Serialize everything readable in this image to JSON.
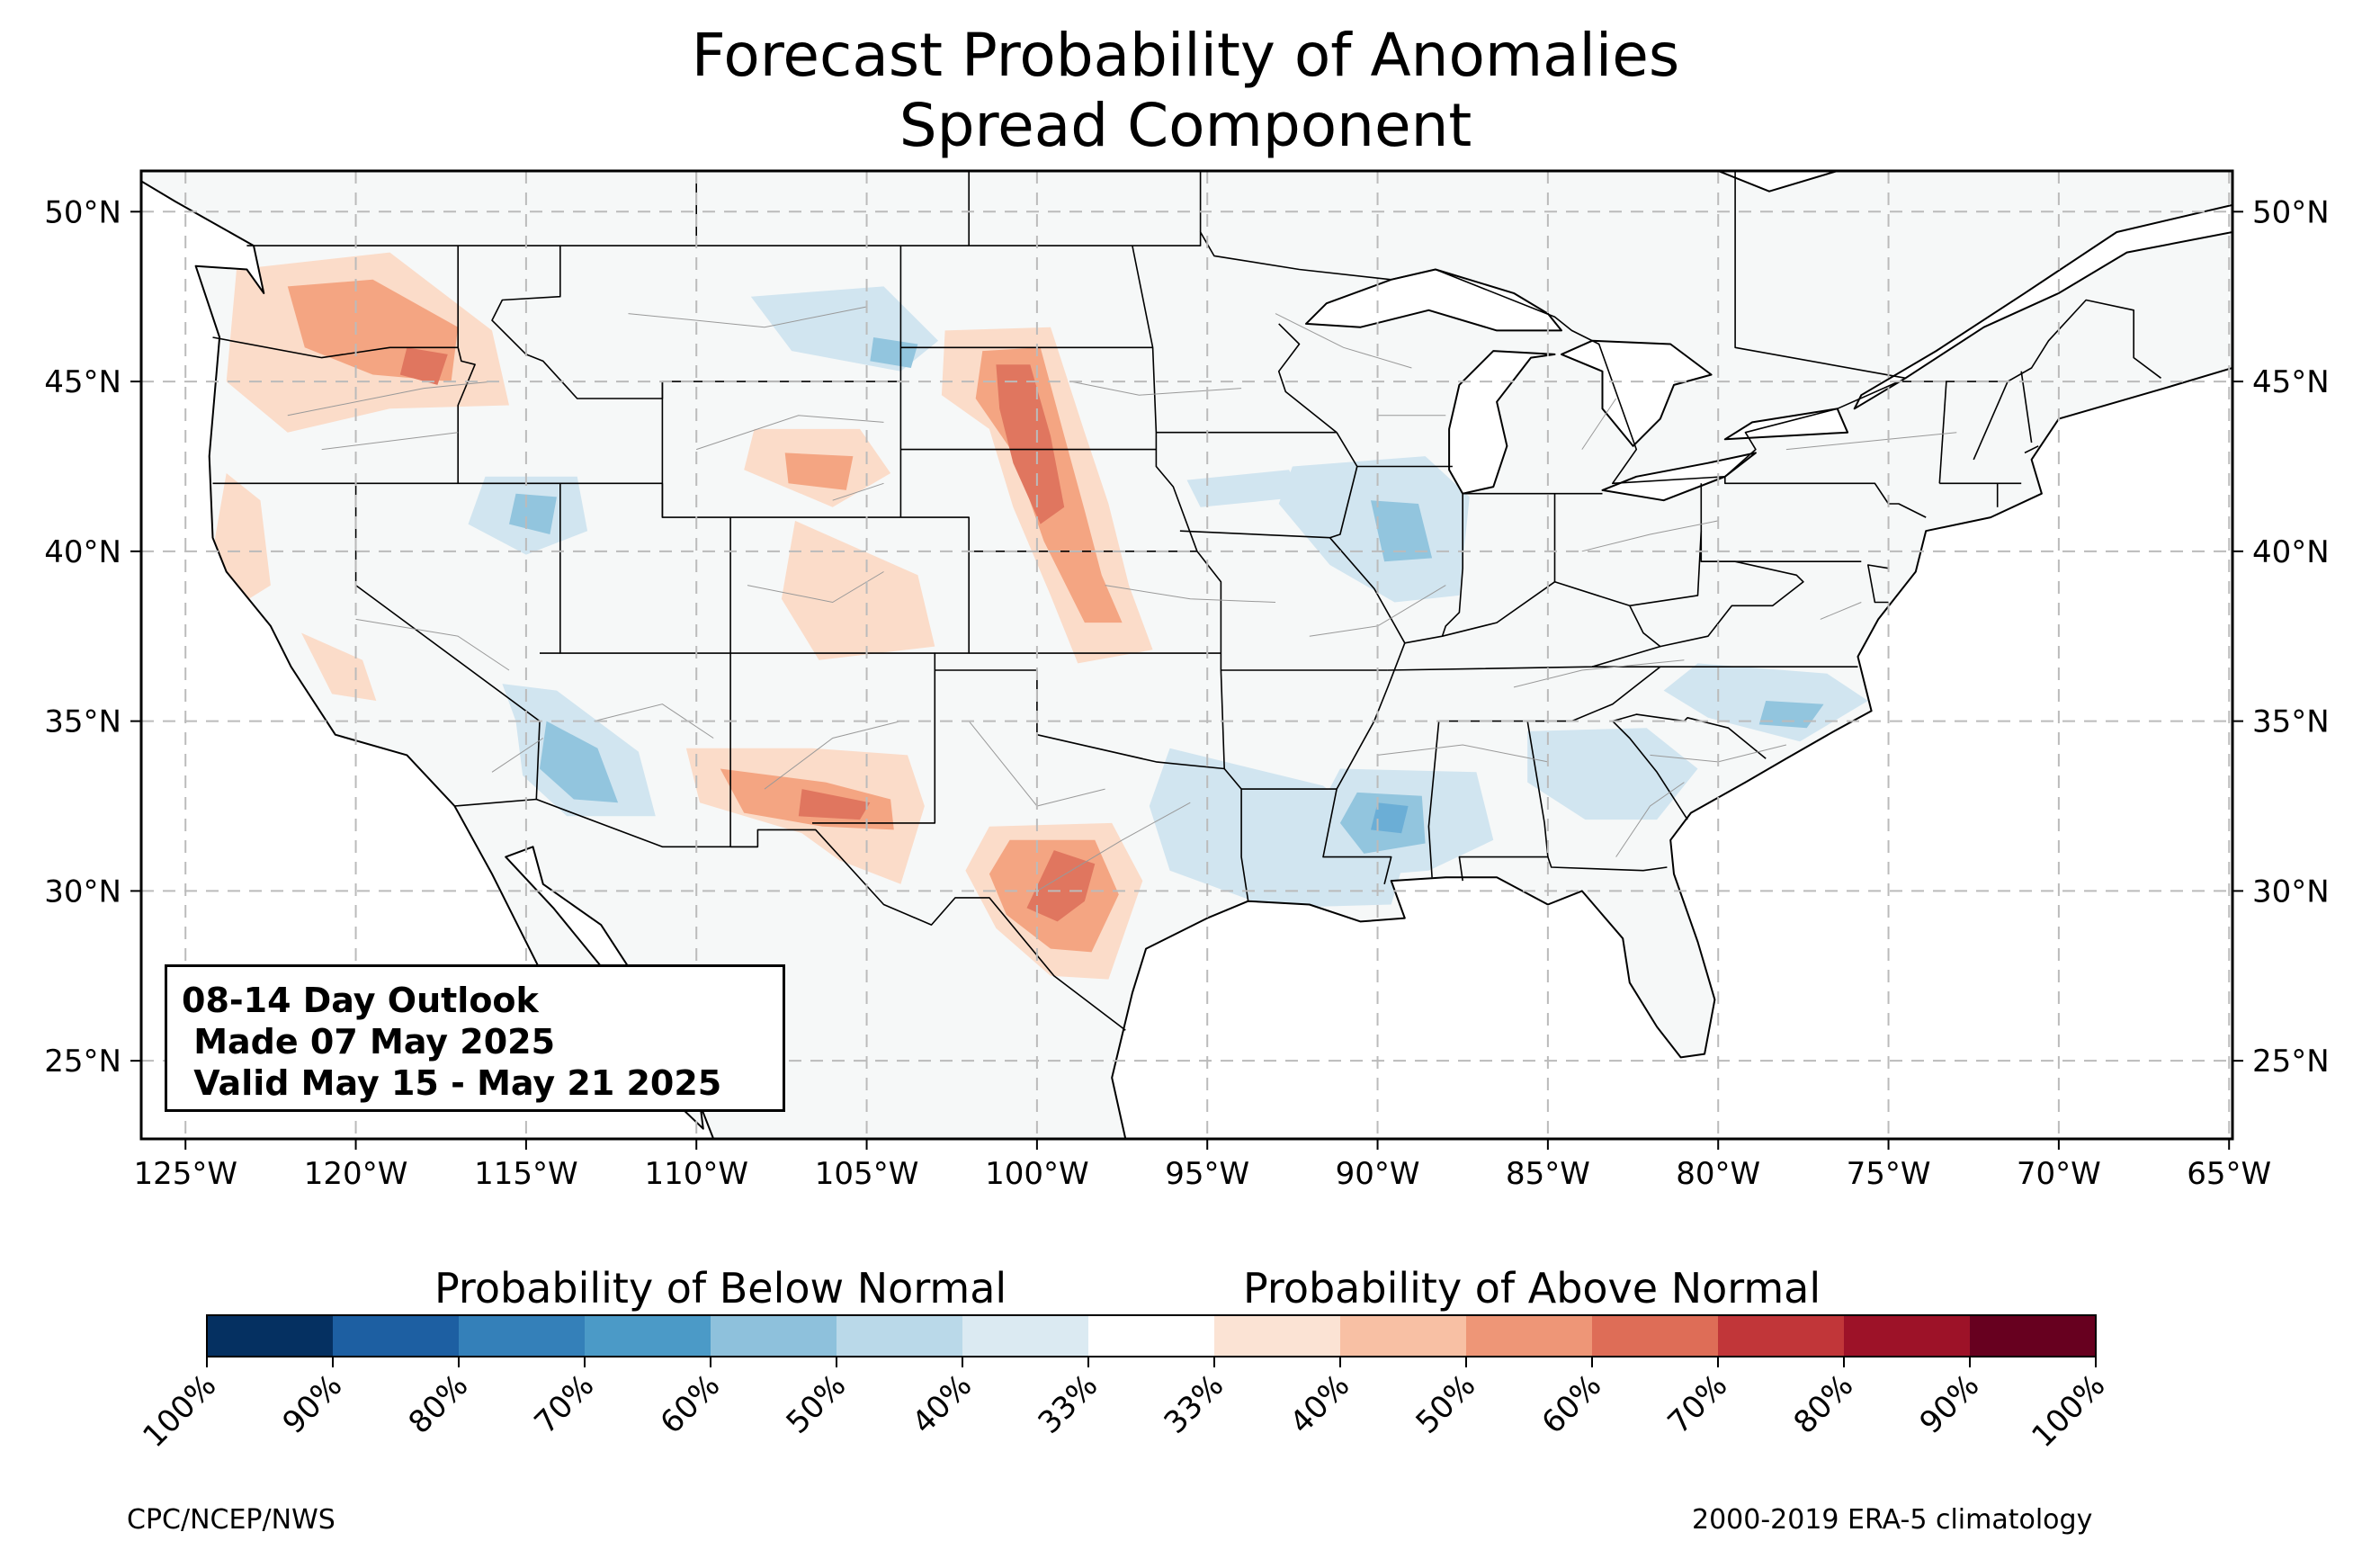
{
  "title": {
    "line1": "Forecast Probability of Anomalies",
    "line2": "Spread Component"
  },
  "map": {
    "lon_range": [
      -126.3,
      -64.9
    ],
    "lat_range": [
      22.7,
      51.2
    ],
    "lon_ticks": [
      {
        "value": -125,
        "label": "125°W"
      },
      {
        "value": -120,
        "label": "120°W"
      },
      {
        "value": -115,
        "label": "115°W"
      },
      {
        "value": -110,
        "label": "110°W"
      },
      {
        "value": -105,
        "label": "105°W"
      },
      {
        "value": -100,
        "label": "100°W"
      },
      {
        "value": -95,
        "label": "95°W"
      },
      {
        "value": -90,
        "label": "90°W"
      },
      {
        "value": -85,
        "label": "85°W"
      },
      {
        "value": -80,
        "label": "80°W"
      },
      {
        "value": -75,
        "label": "75°W"
      },
      {
        "value": -70,
        "label": "70°W"
      },
      {
        "value": -65,
        "label": "65°W"
      }
    ],
    "lat_ticks": [
      {
        "value": 25,
        "label": "25°N"
      },
      {
        "value": 30,
        "label": "30°N"
      },
      {
        "value": 35,
        "label": "35°N"
      },
      {
        "value": 40,
        "label": "40°N"
      },
      {
        "value": 45,
        "label": "45°N"
      },
      {
        "value": 50,
        "label": "50°N"
      }
    ],
    "gridlines": "dashed",
    "colors": {
      "land": "#f6f8f8",
      "water": "#ffffff",
      "border": "#000000",
      "county": "#999999",
      "grid": "#bbbbbb"
    },
    "anomaly_regions": [
      {
        "category": "above-40",
        "color": "#fbdcc9",
        "points": [
          [
            -123.5,
            48.3
          ],
          [
            -119,
            48.8
          ],
          [
            -116,
            46.5
          ],
          [
            -115.5,
            44.3
          ],
          [
            -119,
            44.2
          ],
          [
            -122,
            43.5
          ],
          [
            -123.8,
            45
          ]
        ]
      },
      {
        "category": "above-50",
        "color": "#f4a582",
        "points": [
          [
            -122,
            47.8
          ],
          [
            -119.5,
            48
          ],
          [
            -117,
            46.6
          ],
          [
            -117.2,
            45
          ],
          [
            -119.5,
            45.2
          ],
          [
            -121.5,
            46
          ]
        ]
      },
      {
        "category": "above-60",
        "color": "#e0765f",
        "points": [
          [
            -118.5,
            46
          ],
          [
            -117.3,
            45.8
          ],
          [
            -117.6,
            44.9
          ],
          [
            -118.7,
            45.2
          ]
        ]
      },
      {
        "category": "above-40",
        "color": "#fbdcc9",
        "points": [
          [
            -123.8,
            42.3
          ],
          [
            -122.8,
            41.5
          ],
          [
            -122.5,
            39
          ],
          [
            -123.3,
            38.5
          ],
          [
            -124.2,
            40
          ]
        ]
      },
      {
        "category": "above-40",
        "color": "#fbdcc9",
        "points": [
          [
            -121.6,
            37.6
          ],
          [
            -119.8,
            36.8
          ],
          [
            -119.4,
            35.6
          ],
          [
            -120.7,
            35.8
          ]
        ]
      },
      {
        "category": "above-40",
        "color": "#fbdcc9",
        "points": [
          [
            -108.3,
            43.6
          ],
          [
            -105.2,
            43.6
          ],
          [
            -104.3,
            42.3
          ],
          [
            -106,
            41.3
          ],
          [
            -108.6,
            42.4
          ]
        ]
      },
      {
        "category": "above-50",
        "color": "#f4a582",
        "points": [
          [
            -107.4,
            42.9
          ],
          [
            -105.4,
            42.8
          ],
          [
            -105.6,
            41.8
          ],
          [
            -107.3,
            42
          ]
        ]
      },
      {
        "category": "above-40",
        "color": "#fbdcc9",
        "points": [
          [
            -102.7,
            46.5
          ],
          [
            -99.6,
            46.6
          ],
          [
            -98.6,
            43.5
          ],
          [
            -97.9,
            41.4
          ],
          [
            -97.3,
            39
          ],
          [
            -96.6,
            37.1
          ],
          [
            -98.8,
            36.7
          ],
          [
            -99.6,
            38.7
          ],
          [
            -100.7,
            41.3
          ],
          [
            -101.4,
            43.6
          ],
          [
            -102.8,
            44.6
          ]
        ]
      },
      {
        "category": "above-50",
        "color": "#f4a582",
        "points": [
          [
            -101.6,
            45.9
          ],
          [
            -99.9,
            46
          ],
          [
            -99.2,
            43.4
          ],
          [
            -98.6,
            41.2
          ],
          [
            -98.1,
            39.3
          ],
          [
            -97.5,
            37.9
          ],
          [
            -98.6,
            37.9
          ],
          [
            -99.8,
            40.3
          ],
          [
            -100.7,
            42.9
          ],
          [
            -101.8,
            44.5
          ]
        ]
      },
      {
        "category": "above-60",
        "color": "#e0765f",
        "points": [
          [
            -101.2,
            45.5
          ],
          [
            -100.2,
            45.5
          ],
          [
            -99.6,
            43.4
          ],
          [
            -99.2,
            41.3
          ],
          [
            -99.9,
            40.8
          ],
          [
            -100.7,
            42.6
          ],
          [
            -101.1,
            44.2
          ]
        ]
      },
      {
        "category": "above-40",
        "color": "#fbdcc9",
        "points": [
          [
            -110.3,
            34.2
          ],
          [
            -106.6,
            34.2
          ],
          [
            -103.8,
            34
          ],
          [
            -103.3,
            32.5
          ],
          [
            -104,
            30.2
          ],
          [
            -105.8,
            30.9
          ],
          [
            -106.9,
            31.7
          ],
          [
            -109.9,
            32.6
          ]
        ]
      },
      {
        "category": "above-50",
        "color": "#f4a582",
        "points": [
          [
            -109.3,
            33.6
          ],
          [
            -106.2,
            33.2
          ],
          [
            -104.3,
            32.7
          ],
          [
            -104.2,
            31.8
          ],
          [
            -106.3,
            31.9
          ],
          [
            -108.6,
            32.3
          ]
        ]
      },
      {
        "category": "above-60",
        "color": "#e0765f",
        "points": [
          [
            -106.9,
            33
          ],
          [
            -104.9,
            32.6
          ],
          [
            -105.2,
            32.1
          ],
          [
            -107,
            32.2
          ]
        ]
      },
      {
        "category": "above-40",
        "color": "#fbdcc9",
        "points": [
          [
            -101.4,
            31.9
          ],
          [
            -97.8,
            32
          ],
          [
            -96.9,
            30.3
          ],
          [
            -97.9,
            27.4
          ],
          [
            -99.6,
            27.5
          ],
          [
            -101.2,
            28.9
          ],
          [
            -102.1,
            30.6
          ]
        ]
      },
      {
        "category": "above-50",
        "color": "#f4a582",
        "points": [
          [
            -100.8,
            31.5
          ],
          [
            -98.3,
            31.5
          ],
          [
            -97.6,
            29.9
          ],
          [
            -98.4,
            28.2
          ],
          [
            -99.6,
            28.3
          ],
          [
            -100.9,
            29.3
          ],
          [
            -101.4,
            30.5
          ]
        ]
      },
      {
        "category": "above-60",
        "color": "#e0765f",
        "points": [
          [
            -99.5,
            31.2
          ],
          [
            -98.3,
            30.8
          ],
          [
            -98.6,
            29.7
          ],
          [
            -99.4,
            29.1
          ],
          [
            -100.3,
            29.5
          ]
        ]
      },
      {
        "category": "above-40",
        "color": "#fbdcc9",
        "points": [
          [
            -107.1,
            40.9
          ],
          [
            -103.5,
            39.3
          ],
          [
            -103,
            37.2
          ],
          [
            -106.4,
            36.8
          ],
          [
            -107.5,
            38.6
          ]
        ]
      },
      {
        "category": "below-40",
        "color": "#d1e5f0",
        "points": [
          [
            -115.7,
            36.1
          ],
          [
            -114.1,
            35.9
          ],
          [
            -111.7,
            34.1
          ],
          [
            -111.2,
            32.2
          ],
          [
            -113.8,
            32.2
          ],
          [
            -115.1,
            33.4
          ],
          [
            -115.3,
            35
          ]
        ]
      },
      {
        "category": "below-50",
        "color": "#92c5de",
        "points": [
          [
            -114.4,
            35
          ],
          [
            -112.9,
            34.2
          ],
          [
            -112.3,
            32.6
          ],
          [
            -113.6,
            32.7
          ],
          [
            -114.6,
            33.6
          ]
        ]
      },
      {
        "category": "below-40",
        "color": "#d1e5f0",
        "points": [
          [
            -116.2,
            42.2
          ],
          [
            -113.5,
            42.2
          ],
          [
            -113.2,
            40.6
          ],
          [
            -115,
            39.9
          ],
          [
            -116.7,
            40.8
          ]
        ]
      },
      {
        "category": "below-50",
        "color": "#92c5de",
        "points": [
          [
            -115.3,
            41.7
          ],
          [
            -114.1,
            41.6
          ],
          [
            -114.3,
            40.5
          ],
          [
            -115.5,
            40.8
          ]
        ]
      },
      {
        "category": "below-40",
        "color": "#d1e5f0",
        "points": [
          [
            -108.4,
            47.5
          ],
          [
            -104.5,
            47.8
          ],
          [
            -102.9,
            46.2
          ],
          [
            -104,
            45.3
          ],
          [
            -107.2,
            45.9
          ]
        ]
      },
      {
        "category": "below-50",
        "color": "#92c5de",
        "points": [
          [
            -104.8,
            46.3
          ],
          [
            -103.5,
            46.1
          ],
          [
            -103.7,
            45.4
          ],
          [
            -104.9,
            45.6
          ]
        ]
      },
      {
        "category": "below-40",
        "color": "#d1e5f0",
        "points": [
          [
            -96.1,
            34.2
          ],
          [
            -91.6,
            33.1
          ],
          [
            -90.6,
            32.3
          ],
          [
            -89.1,
            31.3
          ],
          [
            -89.6,
            29.6
          ],
          [
            -93.1,
            29.5
          ],
          [
            -96.1,
            30.6
          ],
          [
            -96.7,
            32.5
          ]
        ]
      },
      {
        "category": "below-40",
        "color": "#d1e5f0",
        "points": [
          [
            -91.1,
            33.6
          ],
          [
            -87.1,
            33.5
          ],
          [
            -86.6,
            31.5
          ],
          [
            -88.5,
            30.6
          ],
          [
            -90.9,
            30.4
          ],
          [
            -92.1,
            31.7
          ]
        ]
      },
      {
        "category": "below-50",
        "color": "#92c5de",
        "points": [
          [
            -90.6,
            32.9
          ],
          [
            -88.7,
            32.8
          ],
          [
            -88.6,
            31.4
          ],
          [
            -90.4,
            31.1
          ],
          [
            -91.1,
            32
          ]
        ]
      },
      {
        "category": "below-60",
        "color": "#6baed6",
        "points": [
          [
            -90,
            32.6
          ],
          [
            -89.1,
            32.5
          ],
          [
            -89.3,
            31.7
          ],
          [
            -90.2,
            31.8
          ]
        ]
      },
      {
        "category": "below-40",
        "color": "#d1e5f0",
        "points": [
          [
            -92.5,
            42.5
          ],
          [
            -88.6,
            42.8
          ],
          [
            -87.3,
            41.6
          ],
          [
            -87.6,
            38.7
          ],
          [
            -89.5,
            38.5
          ],
          [
            -91.4,
            39.6
          ],
          [
            -92.9,
            41.4
          ]
        ]
      },
      {
        "category": "below-50",
        "color": "#92c5de",
        "points": [
          [
            -90.2,
            41.5
          ],
          [
            -88.8,
            41.4
          ],
          [
            -88.4,
            39.8
          ],
          [
            -89.8,
            39.7
          ]
        ]
      },
      {
        "category": "below-40",
        "color": "#d1e5f0",
        "points": [
          [
            -85.6,
            34.7
          ],
          [
            -82.1,
            34.8
          ],
          [
            -80.6,
            33.6
          ],
          [
            -81.8,
            32.1
          ],
          [
            -83.9,
            32.1
          ],
          [
            -85.6,
            33.2
          ]
        ]
      },
      {
        "category": "below-40",
        "color": "#d1e5f0",
        "points": [
          [
            -80.6,
            36.7
          ],
          [
            -76.8,
            36.4
          ],
          [
            -75.6,
            35.6
          ],
          [
            -77.6,
            34.4
          ],
          [
            -80.3,
            35.1
          ],
          [
            -81.6,
            35.9
          ]
        ]
      },
      {
        "category": "below-50",
        "color": "#92c5de",
        "points": [
          [
            -78.6,
            35.6
          ],
          [
            -76.9,
            35.5
          ],
          [
            -77.4,
            34.8
          ],
          [
            -78.8,
            34.9
          ]
        ]
      },
      {
        "category": "below-40",
        "color": "#d1e5f0",
        "points": [
          [
            -95.6,
            42.1
          ],
          [
            -92.6,
            42.4
          ],
          [
            -92.2,
            41.6
          ],
          [
            -95.2,
            41.3
          ]
        ]
      }
    ]
  },
  "info_box": {
    "line1": "08-14 Day Outlook",
    "line2": " Made 07 May 2025",
    "line3": " Valid May 15 - May 21 2025"
  },
  "legend": {
    "below_title": "Probability of Below Normal",
    "above_title": "Probability of Above Normal",
    "bins": [
      {
        "color": "#053061",
        "label": "100%"
      },
      {
        "color": "#1d5fa2",
        "label": "90%"
      },
      {
        "color": "#3480b9",
        "label": "80%"
      },
      {
        "color": "#4b9ac7",
        "label": "70%"
      },
      {
        "color": "#8ec1dc",
        "label": "60%"
      },
      {
        "color": "#bad9e9",
        "label": "50%"
      },
      {
        "color": "#dbeaf2",
        "label": "40%"
      },
      {
        "color": "#ffffff",
        "label": "33%"
      },
      {
        "color": "#fbe3d4",
        "label": "33%"
      },
      {
        "color": "#f8c0a4",
        "label": "40%"
      },
      {
        "color": "#ee9677",
        "label": "50%"
      },
      {
        "color": "#de6d57",
        "label": "60%"
      },
      {
        "color": "#c13639",
        "label": "70%"
      },
      {
        "color": "#9d1228",
        "label": "80%"
      },
      {
        "color": "#67001f",
        "label": "90%"
      }
    ],
    "end_label": "100%"
  },
  "footer": {
    "left": "CPC/NCEP/NWS",
    "right": "2000-2019 ERA-5 climatology"
  }
}
